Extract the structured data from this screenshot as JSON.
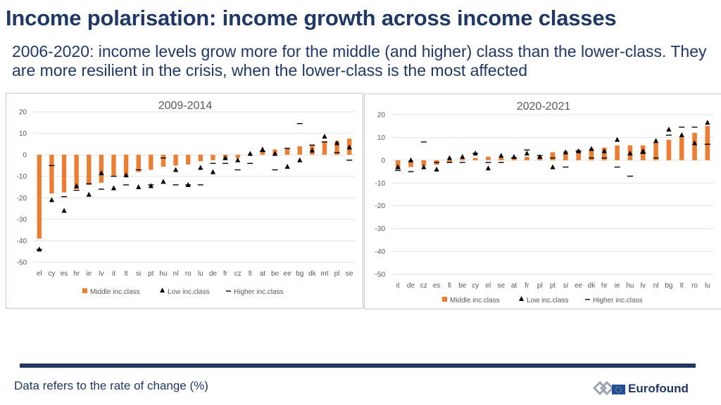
{
  "slide": {
    "title": "Income polarisation: income growth across income classes",
    "subtitle": "2006-2020: income levels grow more for the middle (and higher) class than the lower-class. They are more resilient in the crisis, when the lower-class is the most affected",
    "footnote": "Data refers to the rate of change (%)",
    "logo_text": "Eurofound",
    "divider_color": "#1f3864"
  },
  "colors": {
    "middle": "#ed7d31",
    "marker": "#000000",
    "axis_text": "#595959",
    "grid": "#d9d9d9",
    "text": "#1f3864"
  },
  "chart_data": [
    {
      "type": "bar",
      "title": "2009-2014",
      "ylim": [
        -50,
        20
      ],
      "yticks": [
        20,
        10,
        0,
        -10,
        -20,
        -30,
        -40,
        -50
      ],
      "grid": true,
      "legend_position": "bottom",
      "categories": [
        "el",
        "cy",
        "es",
        "hr",
        "ie",
        "lv",
        "it",
        "lt",
        "si",
        "pt",
        "hu",
        "nl",
        "ro",
        "lu",
        "de",
        "fr",
        "cz",
        "fi",
        "at",
        "be",
        "ee",
        "bg",
        "dk",
        "mt",
        "pl",
        "se"
      ],
      "series": [
        {
          "name": "Middle inc.class",
          "kind": "bar",
          "values": [
            -39,
            -18,
            -17.5,
            -16,
            -14,
            -13,
            -10,
            -10,
            -8,
            -7,
            -5.5,
            -5,
            -4.5,
            -3,
            -2.5,
            -2,
            -1.5,
            0.5,
            1.5,
            2.5,
            3,
            4,
            4.5,
            6,
            6.5,
            7.5
          ]
        },
        {
          "name": "Low inc.class",
          "kind": "triangle",
          "values": [
            -44,
            -21,
            -26,
            -14.5,
            -18.5,
            -8.5,
            -15.5,
            -9.5,
            -15,
            -14.5,
            -12.5,
            -7,
            -14,
            -6,
            -8,
            -1.5,
            -2.5,
            0.5,
            2.5,
            0.5,
            -5.5,
            -2.5,
            2,
            8.5,
            5.5,
            3.5
          ]
        },
        {
          "name": "Higher inc.class",
          "kind": "dash",
          "values": [
            -44,
            -5,
            -19.5,
            -16.5,
            -13.5,
            -16,
            -10,
            -14,
            -7,
            -14,
            -1.5,
            -14,
            -14,
            -14,
            -4,
            -4,
            -7,
            -4,
            1.5,
            -7,
            3,
            14.5,
            4.5,
            6,
            1,
            -2.5
          ]
        }
      ]
    },
    {
      "type": "bar",
      "title": "2020-2021",
      "ylim": [
        -50,
        20
      ],
      "yticks": [
        20,
        10,
        0,
        -10,
        -20,
        -30,
        -40,
        -50
      ],
      "grid": true,
      "legend_position": "bottom",
      "categories": [
        "it",
        "de",
        "cz",
        "es",
        "fi",
        "be",
        "cy",
        "el",
        "se",
        "at",
        "fr",
        "pl",
        "pt",
        "si",
        "ee",
        "dk",
        "hr",
        "ie",
        "hu",
        "lv",
        "nl",
        "bg",
        "lt",
        "ro",
        "lu"
      ],
      "series": [
        {
          "name": "Middle inc.class",
          "kind": "bar",
          "values": [
            -4,
            -3,
            -2.5,
            -2,
            -1,
            0.5,
            1,
            1.5,
            1,
            1,
            1.5,
            1.5,
            3.5,
            4,
            4.5,
            5,
            5.5,
            6.5,
            6.5,
            6.5,
            8,
            9,
            10,
            12,
            15
          ]
        },
        {
          "name": "Low inc.class",
          "kind": "triangle",
          "values": [
            -3,
            0,
            -3,
            -4,
            1,
            1.5,
            3,
            -3.5,
            2,
            1.5,
            3,
            1.5,
            -3,
            3.5,
            4,
            5,
            4,
            9,
            3,
            4,
            8.5,
            13.5,
            11,
            7.5,
            16.5
          ]
        },
        {
          "name": "Higher inc.class",
          "kind": "dash",
          "values": [
            -4.5,
            -5,
            8,
            -1,
            -1,
            -1,
            3,
            -1,
            -1,
            1,
            4.5,
            2,
            1,
            -3,
            4,
            1,
            1,
            -3,
            -7,
            3,
            1,
            11,
            14.5,
            14.5,
            7
          ]
        }
      ]
    }
  ]
}
